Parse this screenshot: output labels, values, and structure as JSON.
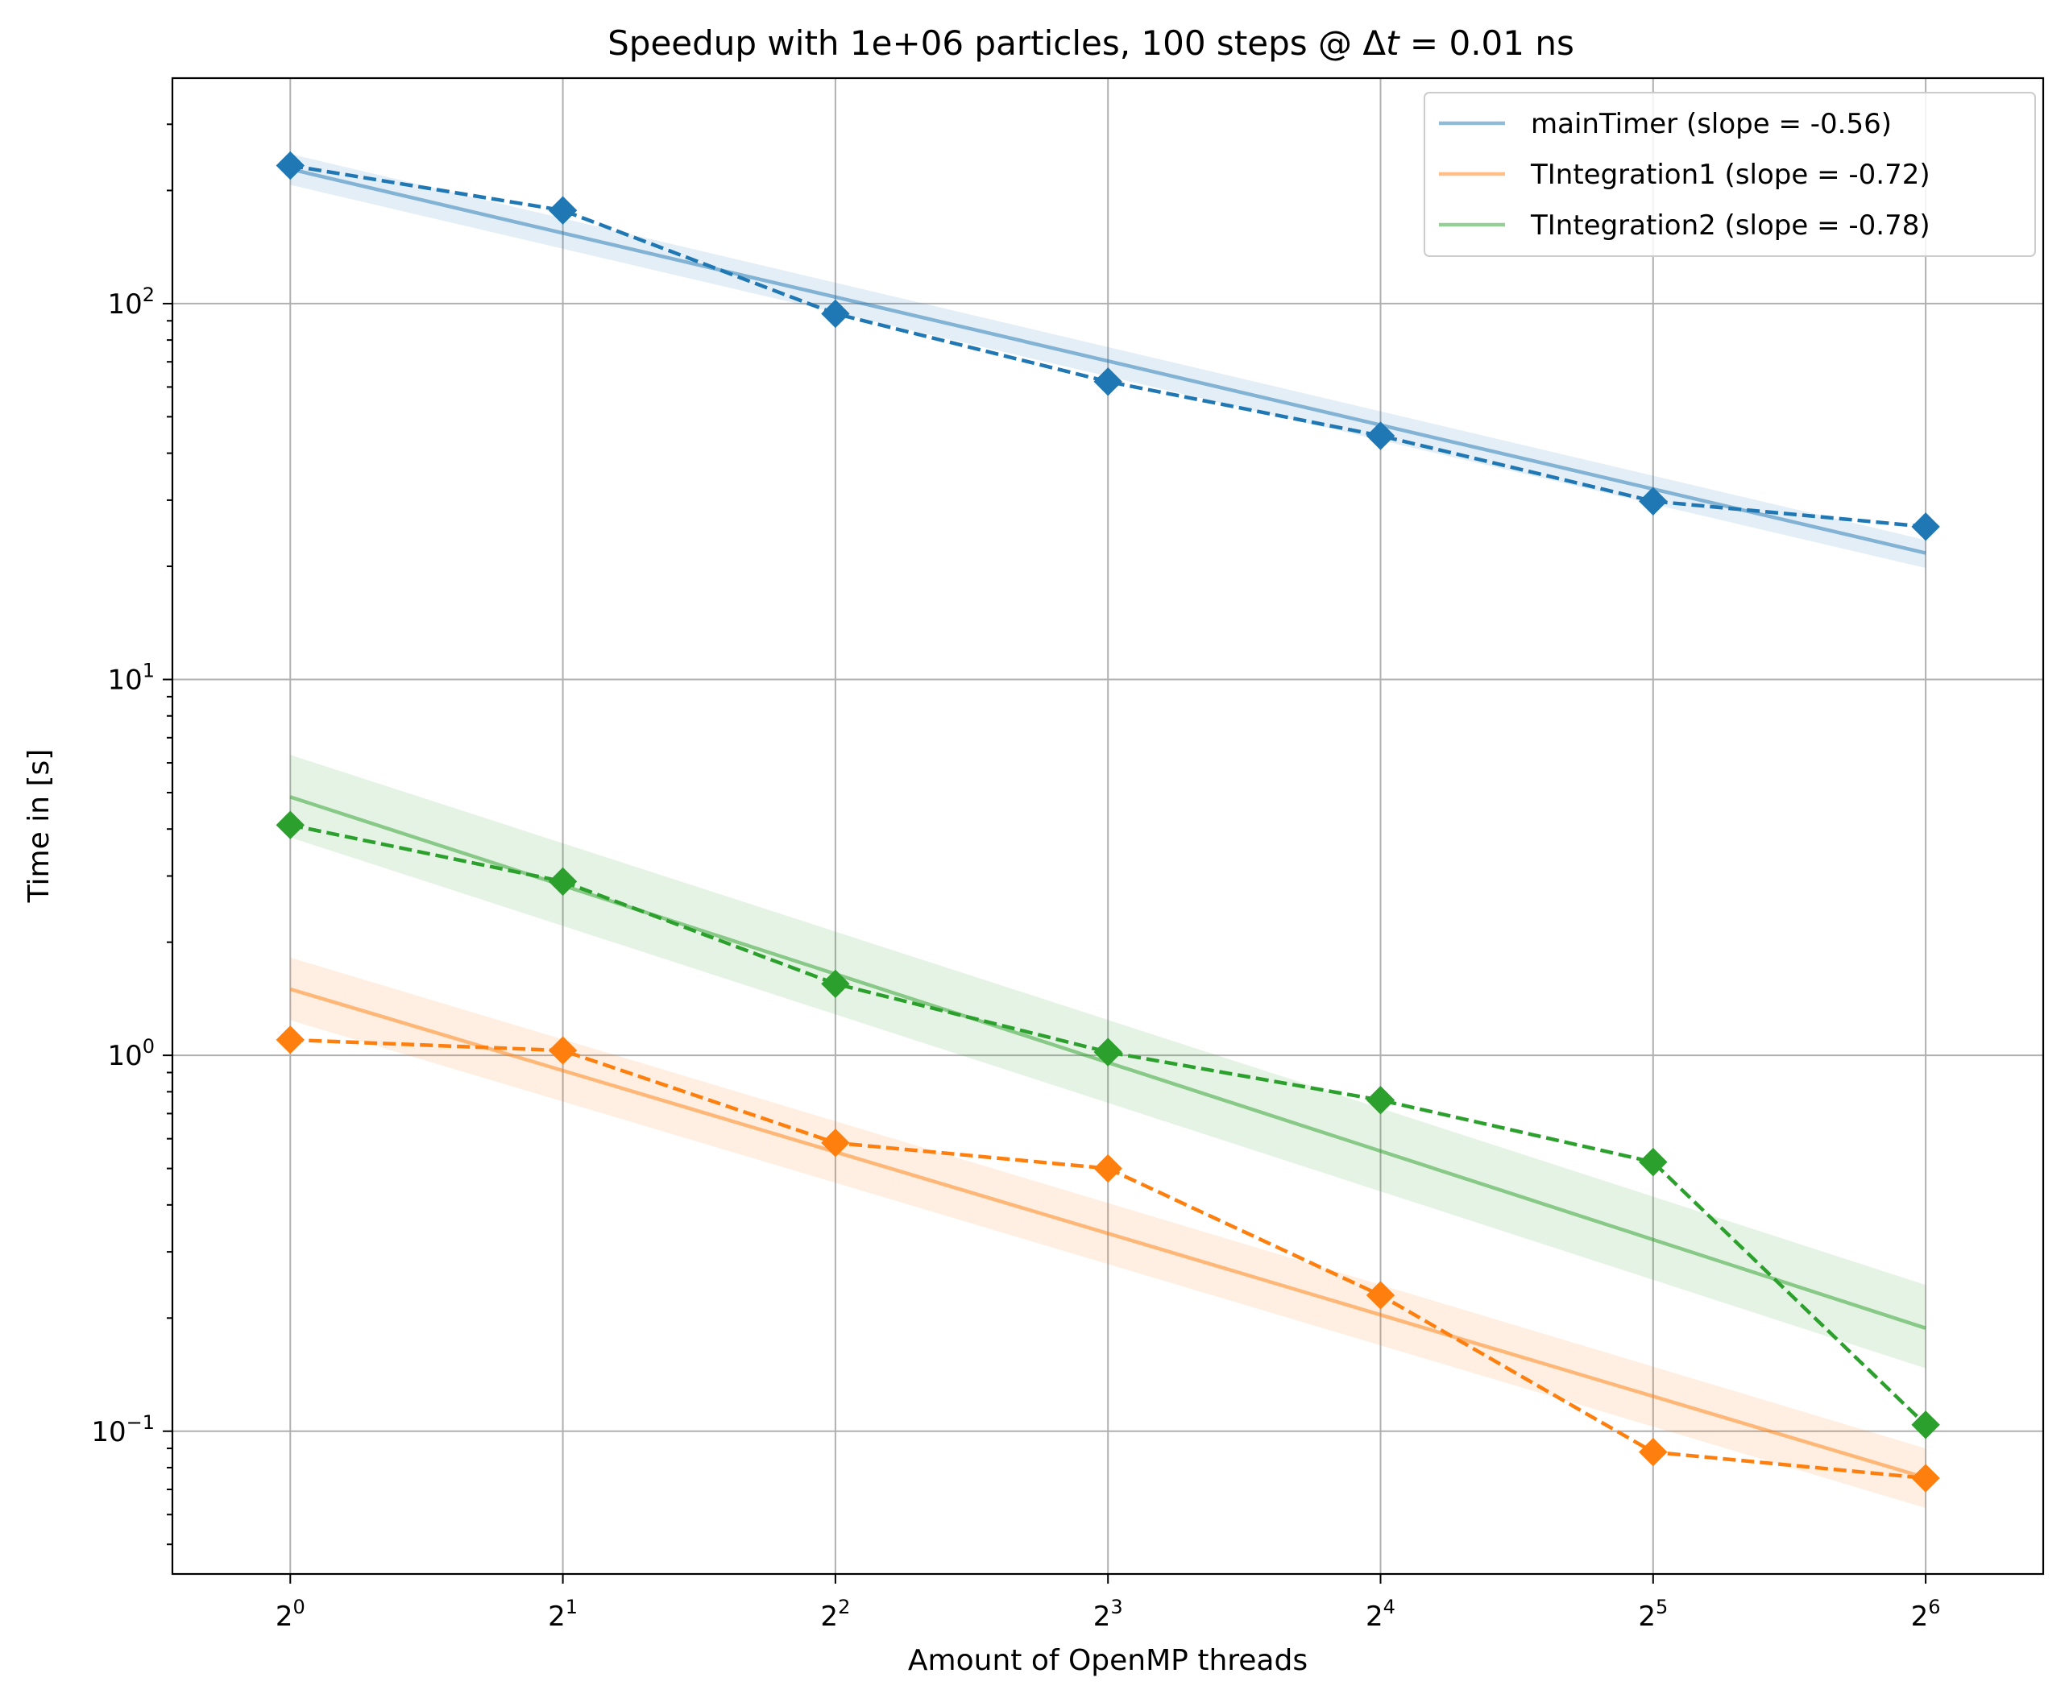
{
  "chart_data": {
    "type": "line",
    "title": "Speedup with 1e+06 particles, 100 steps @ Δt = 0.01 ns",
    "title_parts": {
      "prefix": "Speedup with 1e+06 particles, 100 steps @ Δ",
      "italic": "t",
      "suffix": " = 0.01 ns"
    },
    "xlabel": "Amount of OpenMP threads",
    "ylabel": "Time in [s]",
    "xscale": "log2",
    "yscale": "log10",
    "x": [
      1,
      2,
      4,
      8,
      16,
      32,
      64
    ],
    "xtick_labels": [
      {
        "base": "2",
        "exp": "0"
      },
      {
        "base": "2",
        "exp": "1"
      },
      {
        "base": "2",
        "exp": "2"
      },
      {
        "base": "2",
        "exp": "3"
      },
      {
        "base": "2",
        "exp": "4"
      },
      {
        "base": "2",
        "exp": "5"
      },
      {
        "base": "2",
        "exp": "6"
      }
    ],
    "ytick_labels": [
      {
        "value": 0.1,
        "base": "10",
        "exp": "−1"
      },
      {
        "value": 1,
        "base": "10",
        "exp": "0"
      },
      {
        "value": 10,
        "base": "10",
        "exp": "1"
      },
      {
        "value": 100,
        "base": "10",
        "exp": "2"
      }
    ],
    "xlim": [
      0.741,
      86.3
    ],
    "ylim": [
      0.0417,
      398
    ],
    "grid": true,
    "legend_position": "top-right",
    "series": [
      {
        "name": "mainTimer",
        "legend": "mainTimer (slope = -0.56)",
        "color": "#1f77b4",
        "values": [
          233,
          177,
          94,
          62,
          44.5,
          29.8,
          25.5
        ],
        "fit": [
          228,
          21.7
        ],
        "band_upper": [
          250,
          23.5
        ],
        "band_lower": [
          207,
          19.8
        ]
      },
      {
        "name": "TIntegration1",
        "legend": "TIntegration1 (slope = -0.72)",
        "color": "#ff7f0e",
        "values": [
          1.1,
          1.03,
          0.585,
          0.5,
          0.23,
          0.088,
          0.075
        ],
        "fit": [
          1.5,
          0.0752
        ],
        "band_upper": [
          1.82,
          0.09
        ],
        "band_lower": [
          1.24,
          0.0625
        ]
      },
      {
        "name": "TIntegration2",
        "legend": "TIntegration2 (slope = -0.78)",
        "color": "#2ca02c",
        "values": [
          4.1,
          2.9,
          1.55,
          1.02,
          0.76,
          0.52,
          0.104
        ],
        "fit": [
          4.87,
          0.188
        ],
        "band_upper": [
          6.3,
          0.245
        ],
        "band_lower": [
          3.8,
          0.147
        ]
      }
    ]
  }
}
